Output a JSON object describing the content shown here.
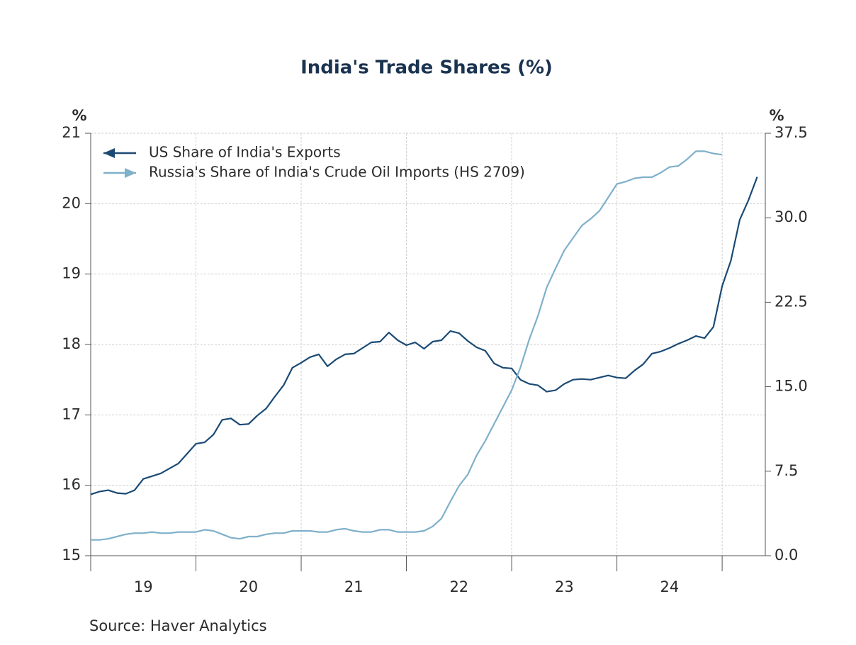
{
  "chart_data": {
    "type": "line",
    "title": "India's Trade Shares (%)",
    "ylabel": "%",
    "y2label": "%",
    "source": "Source:  Haver Analytics",
    "x": [
      19,
      19.083,
      19.167,
      19.25,
      19.333,
      19.417,
      19.5,
      19.583,
      19.667,
      19.75,
      19.833,
      19.917,
      20,
      20.083,
      20.167,
      20.25,
      20.333,
      20.417,
      20.5,
      20.583,
      20.667,
      20.75,
      20.833,
      20.917,
      21,
      21.083,
      21.167,
      21.25,
      21.333,
      21.417,
      21.5,
      21.583,
      21.667,
      21.75,
      21.833,
      21.917,
      22,
      22.083,
      22.167,
      22.25,
      22.333,
      22.417,
      22.5,
      22.583,
      22.667,
      22.75,
      22.833,
      22.917,
      23,
      23.083,
      23.167,
      23.25,
      23.333,
      23.417,
      23.5,
      23.583,
      23.667,
      23.75,
      23.833,
      23.917,
      24,
      24.083,
      24.167,
      24.25,
      24.333,
      24.417,
      24.5,
      24.583,
      24.667,
      24.75,
      24.833,
      24.917,
      25,
      25.083,
      25.167,
      25.25,
      25.333
    ],
    "xlim": [
      19,
      25.41
    ],
    "xticks": [
      {
        "value": 19.5,
        "label": "19"
      },
      {
        "value": 20.5,
        "label": "20"
      },
      {
        "value": 21.5,
        "label": "21"
      },
      {
        "value": 22.5,
        "label": "22"
      },
      {
        "value": 23.5,
        "label": "23"
      },
      {
        "value": 24.5,
        "label": "24"
      }
    ],
    "xgrid": [
      19,
      20,
      21,
      22,
      23,
      24,
      25
    ],
    "ylim": [
      15,
      21
    ],
    "yticks": [
      15,
      16,
      17,
      18,
      19,
      20,
      21
    ],
    "y2lim": [
      0,
      37.5
    ],
    "y2ticks": [
      {
        "value": 0,
        "label": "0.0"
      },
      7.5,
      {
        "value": 15,
        "label": "15.0"
      },
      22.5,
      {
        "value": 30,
        "label": "30.0"
      },
      37.5
    ],
    "grid": true,
    "legend": "upper-left",
    "series": [
      {
        "name": "US Share of India's Exports",
        "color": "#1b4a74",
        "axis": "y",
        "values": [
          15.87,
          15.91,
          15.93,
          15.89,
          15.88,
          15.93,
          16.09,
          16.13,
          16.17,
          16.24,
          16.31,
          16.45,
          16.59,
          16.61,
          16.72,
          16.93,
          16.95,
          16.86,
          16.87,
          16.99,
          17.09,
          17.26,
          17.42,
          17.67,
          17.74,
          17.82,
          17.86,
          17.69,
          17.79,
          17.86,
          17.87,
          17.95,
          18.03,
          18.04,
          18.17,
          18.06,
          17.99,
          18.03,
          17.94,
          18.04,
          18.06,
          18.19,
          18.16,
          18.05,
          17.96,
          17.91,
          17.73,
          17.67,
          17.66,
          17.5,
          17.44,
          17.42,
          17.33,
          17.35,
          17.44,
          17.5,
          17.51,
          17.5,
          17.53,
          17.56,
          17.53,
          17.52,
          17.63,
          17.72,
          17.87,
          17.9,
          17.95,
          18.01,
          18.06,
          18.12,
          18.09,
          18.25,
          18.83,
          19.19,
          19.77,
          20.05,
          20.38
        ]
      },
      {
        "name": "Russia's Share of India's Crude Oil Imports (HS 2709)",
        "color": "#7fb0ca",
        "axis": "y2",
        "values": [
          1.4,
          1.4,
          1.5,
          1.7,
          1.9,
          2.0,
          2.0,
          2.1,
          2.0,
          2.0,
          2.1,
          2.1,
          2.1,
          2.3,
          2.2,
          1.9,
          1.6,
          1.5,
          1.7,
          1.7,
          1.9,
          2.0,
          2.0,
          2.2,
          2.2,
          2.2,
          2.1,
          2.1,
          2.3,
          2.4,
          2.2,
          2.1,
          2.1,
          2.3,
          2.3,
          2.1,
          2.1,
          2.1,
          2.2,
          2.6,
          3.3,
          4.8,
          6.2,
          7.2,
          8.9,
          10.2,
          11.7,
          13.2,
          14.7,
          16.7,
          19.2,
          21.3,
          23.8,
          25.5,
          27.1,
          28.2,
          29.3,
          29.9,
          30.6,
          31.8,
          33.0,
          33.2,
          33.5,
          33.6,
          33.6,
          34.0,
          34.5,
          34.6,
          35.2,
          35.9,
          35.9,
          35.7,
          35.6,
          null,
          null,
          null,
          null
        ]
      }
    ]
  }
}
